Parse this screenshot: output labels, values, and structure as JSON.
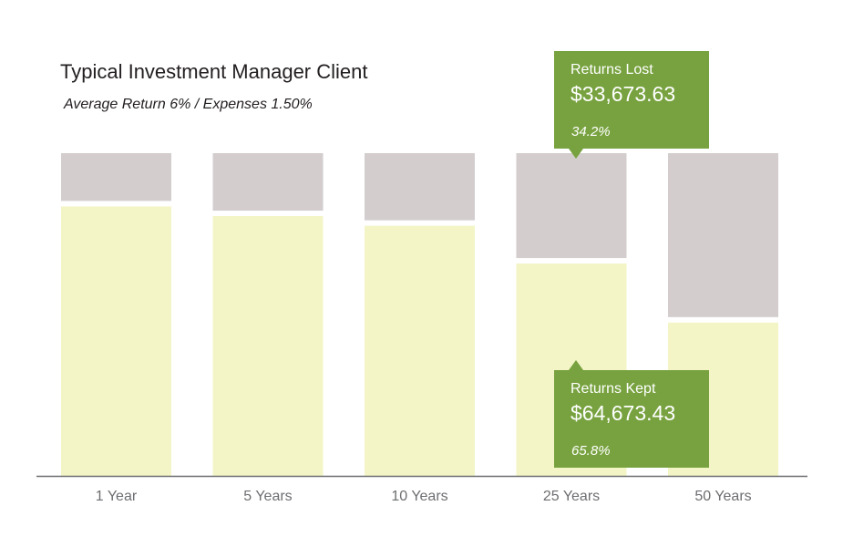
{
  "chart_data": {
    "type": "bar",
    "stacked": true,
    "percent": true,
    "title": "Typical Investment Manager Client",
    "subtitle": "Average Return 6%  / Expenses 1.50%",
    "categories": [
      "1 Year",
      "5 Years",
      "10 Years",
      "25 Years",
      "50 Years"
    ],
    "series": [
      {
        "name": "Returns Kept",
        "color": "#f3f5c6",
        "values": [
          83.5,
          80.5,
          77.5,
          65.8,
          47.5
        ]
      },
      {
        "name": "Returns Lost",
        "color": "#d3cdce",
        "values": [
          16.5,
          19.5,
          22.5,
          34.2,
          52.5
        ]
      }
    ],
    "ylim": [
      0,
      100
    ],
    "grid": false,
    "callouts": [
      {
        "series": "Returns Lost",
        "category": "25 Years",
        "label": "Returns Lost",
        "value": "$33,673.63",
        "pct": "34.2%"
      },
      {
        "series": "Returns Kept",
        "category": "25 Years",
        "label": "Returns Kept",
        "value": "$64,673.43",
        "pct": "65.8%"
      }
    ]
  }
}
